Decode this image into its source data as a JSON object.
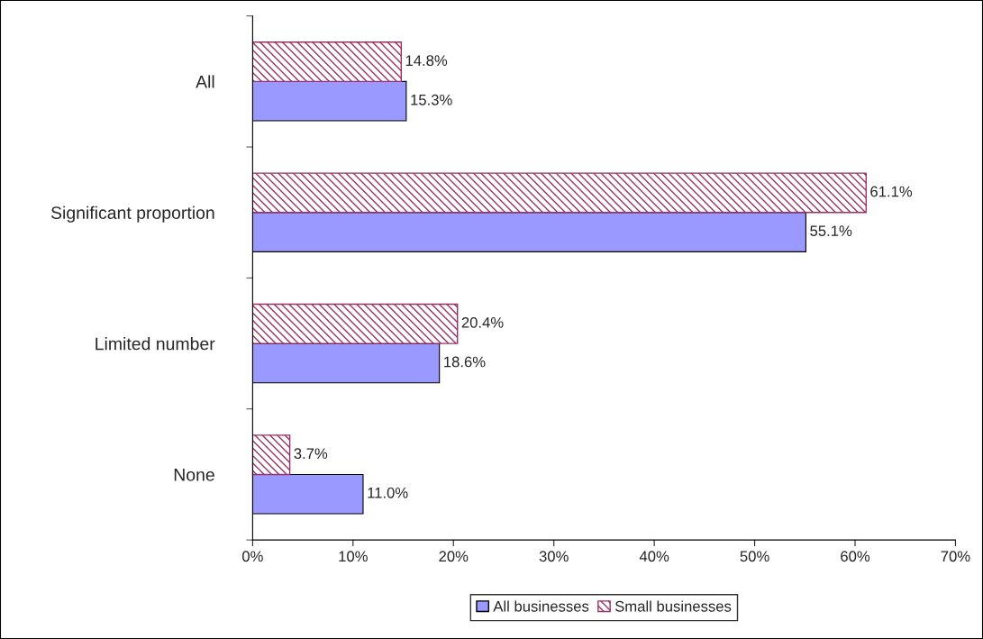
{
  "chart_data": {
    "type": "bar",
    "orientation": "horizontal",
    "categories": [
      "All",
      "Significant proportion",
      "Limited number",
      "None"
    ],
    "series": [
      {
        "name": "All businesses",
        "color": "#9999ff",
        "values": [
          15.3,
          55.1,
          18.6,
          11.0
        ],
        "value_labels": [
          "15.3%",
          "55.1%",
          "18.6%",
          "11.0%"
        ]
      },
      {
        "name": "Small businesses",
        "color": "#993366",
        "values": [
          14.8,
          61.1,
          20.4,
          3.7
        ],
        "value_labels": [
          "14.8%",
          "61.1%",
          "20.4%",
          "3.7%"
        ]
      }
    ],
    "xlim": [
      0,
      70
    ],
    "xticks": [
      {
        "value": 0,
        "label": "0%"
      },
      {
        "value": 10,
        "label": "10%"
      },
      {
        "value": 20,
        "label": "20%"
      },
      {
        "value": 30,
        "label": "30%"
      },
      {
        "value": 40,
        "label": "40%"
      },
      {
        "value": 50,
        "label": "50%"
      },
      {
        "value": 60,
        "label": "60%"
      },
      {
        "value": 70,
        "label": "70%"
      }
    ],
    "grid": false,
    "legend": "bottom"
  }
}
